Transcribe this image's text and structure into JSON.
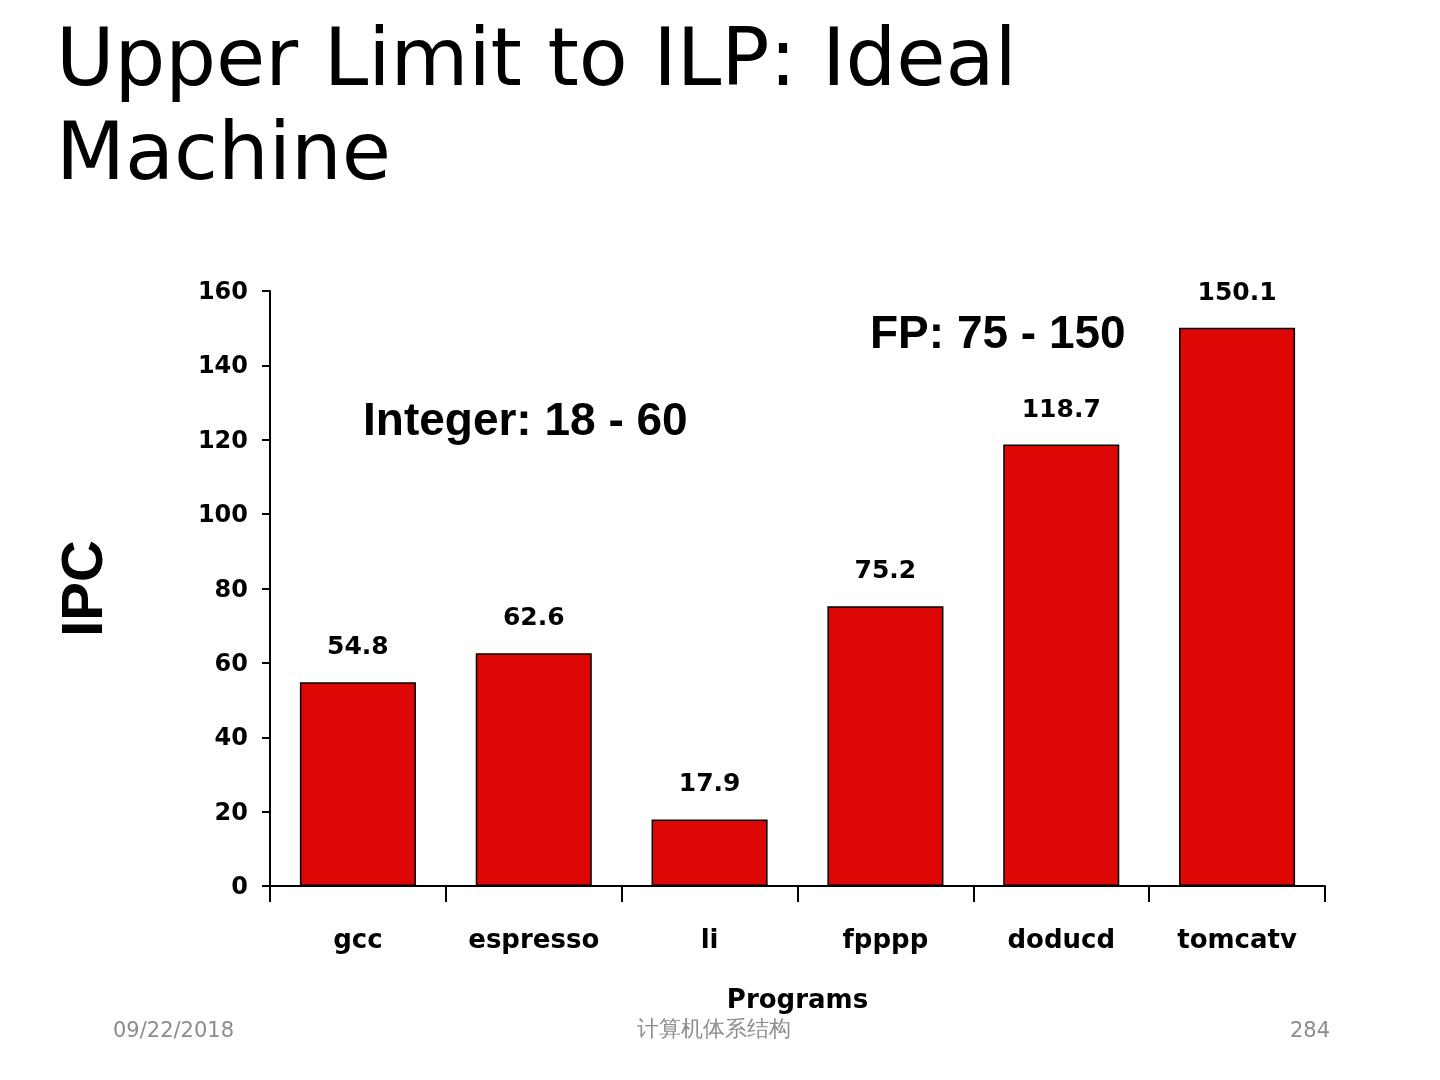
{
  "chart_data": {
    "type": "bar",
    "title": "Upper Limit to ILP: Ideal Machine",
    "xlabel": "Programs",
    "ylabel": "IPC",
    "categories": [
      "gcc",
      "espresso",
      "li",
      "fpppp",
      "doducd",
      "tomcatv"
    ],
    "values": [
      54.8,
      62.6,
      17.9,
      75.2,
      118.7,
      150.1
    ],
    "color": "#dd0806",
    "ylim": [
      0,
      160
    ],
    "yticks": [
      0,
      20,
      40,
      60,
      80,
      100,
      120,
      140,
      160
    ],
    "data_labels": true,
    "annotations": [
      "Integer: 18 - 60",
      "FP: 75 - 150",
      "09/22/2018",
      "计算机体系结构",
      "284"
    ]
  }
}
